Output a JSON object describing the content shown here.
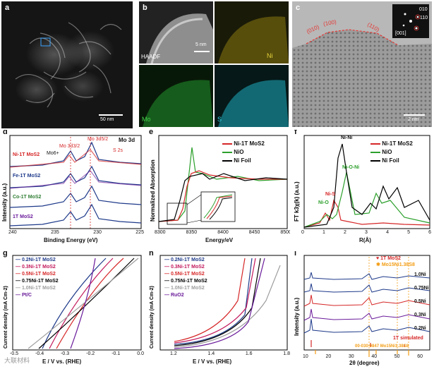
{
  "panels": {
    "a": {
      "label": "a",
      "scale": "50 nm"
    },
    "b": {
      "label": "b",
      "scale": "5 nm",
      "tiles": [
        "HAADF",
        "Ni",
        "Mo",
        "S"
      ]
    },
    "c": {
      "label": "c",
      "scale": "2 nm",
      "facets": [
        "(010)",
        "(100)",
        "(110)"
      ],
      "fft_labels": [
        "010",
        "110",
        "[001]"
      ]
    },
    "d": {
      "label": "d",
      "corner": "Mo 3d",
      "samples": [
        "Ni-1T MoS2",
        "Fe-1T MoS2",
        "Co-1T MoS2",
        "1T MoS2"
      ],
      "peaks": [
        "Mo 3d3/2",
        "Mo 3d5/2",
        "Mo6+",
        "S 2s"
      ],
      "xlabel": "Binding Energy (eV)",
      "ylabel": "Intensity (a.u.)",
      "xticks": [
        "240",
        "235",
        "230",
        "225"
      ]
    },
    "e": {
      "label": "e",
      "legend": [
        "Ni-1T MoS2",
        "NiO",
        "Ni Foil"
      ],
      "xlabel": "Energy/eV",
      "ylabel": "Normalized Absorption",
      "xticks": [
        "8300",
        "8350",
        "8400",
        "8450",
        "8500"
      ]
    },
    "f": {
      "label": "f",
      "legend": [
        "Ni-1T MoS2",
        "NiO",
        "Ni Foil"
      ],
      "annotations": [
        "Ni-Ni",
        "Ni-O-Ni",
        "Ni-S",
        "Ni-O"
      ],
      "xlabel": "R(Å)",
      "ylabel": "FT k3χ(k) (a.u.)",
      "xticks": [
        "0",
        "1",
        "2",
        "3",
        "4",
        "5",
        "6"
      ]
    },
    "g": {
      "label": "g",
      "legend": [
        "0.2Ni-1T MoS2",
        "0.3Ni-1T MoS2",
        "0.5Ni-1T MoS2",
        "0.75Ni-1T MoS2",
        "1.0Ni-1T MoS2",
        "Pt/C"
      ],
      "xlabel": "E / V vs. (RHE)",
      "ylabel": "Current density (mA Cm-2)",
      "xticks": [
        "-0.5",
        "-0.4",
        "-0.3",
        "-0.2",
        "-0.1",
        "0.0"
      ]
    },
    "h": {
      "label": "h",
      "legend": [
        "0.2Ni-1T MoS2",
        "0.3Ni-1T MoS2",
        "0.5Ni-1T MoS2",
        "0.75Ni-1T MoS2",
        "1.0Ni-1T MoS2",
        "RuO2"
      ],
      "xlabel": "E / V vs. (RHE)",
      "ylabel": "Current density (mA Cm-2)",
      "xticks": [
        "1.2",
        "1.4",
        "1.6",
        "1.8"
      ]
    },
    "i": {
      "label": "i",
      "legend": [
        "1T MoS2",
        "Mo15Ni1.38S8"
      ],
      "samples": [
        "1.0Ni",
        "0.75Ni",
        "0.5Ni",
        "0.3Ni",
        "0.2Ni",
        "1T simulated"
      ],
      "pdf": "00-030-0847 Mo15Ni1.38S8",
      "xlabel": "2θ (degree)",
      "ylabel": "Intensity (a.u.)",
      "xticks": [
        "10",
        "20",
        "30",
        "40",
        "50",
        "60"
      ]
    }
  },
  "watermark": "大联材料"
}
